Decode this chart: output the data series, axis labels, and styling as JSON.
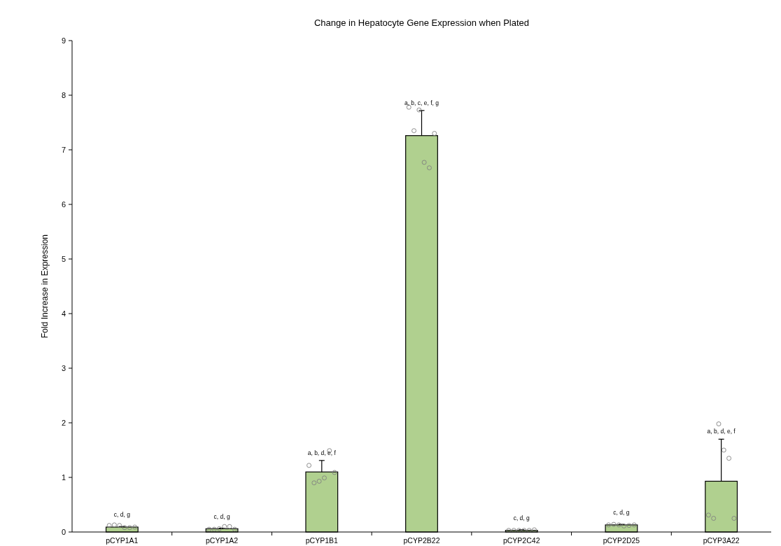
{
  "chart_data": {
    "type": "bar",
    "title": "Change in Hepatocyte Gene Expression when Plated",
    "ylabel": "Fold Increase in Expression",
    "categories": [
      "pCYP1A1",
      "pCYP1A2",
      "pCYP1B1",
      "pCYP2B22",
      "pCYP2C42",
      "pCYP2D25",
      "pCYP3A22"
    ],
    "series": [
      {
        "color": "#b0d08f",
        "values": [
          0.09,
          0.06,
          1.1,
          7.26,
          0.03,
          0.13,
          0.93
        ],
        "errors": [
          [
            0.09,
            0.1
          ],
          [
            0.06,
            0.07
          ],
          [
            1.1,
            1.31
          ],
          [
            7.26,
            7.72
          ],
          [
            0.03,
            0.04
          ],
          [
            0.13,
            0.14
          ],
          [
            0.93,
            1.7
          ]
        ]
      },
      {
        "type": "scatter",
        "color": "#808080",
        "marker": "circle",
        "x": [
          "pCYP1A1",
          "pCYP1A1",
          "pCYP1A1",
          "pCYP1A1",
          "pCYP1A1",
          "pCYP1A1",
          "pCYP1A2",
          "pCYP1A2",
          "pCYP1A2",
          "pCYP1A2",
          "pCYP1A2",
          "pCYP1A2",
          "pCYP1B1",
          "pCYP1B1",
          "pCYP1B1",
          "pCYP1B1",
          "pCYP1B1",
          "pCYP1B1",
          "pCYP2B22",
          "pCYP2B22",
          "pCYP2B22",
          "pCYP2B22",
          "pCYP2B22",
          "pCYP2B22",
          "pCYP2C42",
          "pCYP2C42",
          "pCYP2C42",
          "pCYP2C42",
          "pCYP2C42",
          "pCYP2C42",
          "pCYP2D25",
          "pCYP2D25",
          "pCYP2D25",
          "pCYP2D25",
          "pCYP2D25",
          "pCYP2D25",
          "pCYP3A22",
          "pCYP3A22",
          "pCYP3A22",
          "pCYP3A22",
          "pCYP3A22",
          "pCYP3A22"
        ],
        "values": [
          0.12,
          0.13,
          0.12,
          0.08,
          0.08,
          0.09,
          0.05,
          0.05,
          0.06,
          0.1,
          0.1,
          0.05,
          1.22,
          0.9,
          0.93,
          0.99,
          1.49,
          1.09,
          7.78,
          7.35,
          7.73,
          6.77,
          6.67,
          7.3,
          0.03,
          0.03,
          0.03,
          0.03,
          0.03,
          0.04,
          0.13,
          0.14,
          0.13,
          0.11,
          0.12,
          0.13,
          0.31,
          0.25,
          1.98,
          1.5,
          1.35,
          0.25
        ]
      }
    ],
    "ylim": [
      0,
      9
    ],
    "yticks": [
      0,
      1,
      2,
      3,
      4,
      5,
      6,
      7,
      8,
      9
    ],
    "grid": false,
    "annotations": [
      {
        "text": "c, d, g",
        "x": "pCYP1A1",
        "y": 0.1
      },
      {
        "text": "c, d, g",
        "x": "pCYP1A2",
        "y": 0.07
      },
      {
        "text": "a, b, d, e, f",
        "x": "pCYP1B1",
        "y": 1.31
      },
      {
        "text": "a, b, c, e, f, g",
        "x": "pCYP2B22",
        "y": 7.72
      },
      {
        "text": "c, d, g",
        "x": "pCYP2C42",
        "y": 0.04
      },
      {
        "text": "c, d, g",
        "x": "pCYP2D25",
        "y": 0.14
      },
      {
        "text": "a, b, d, e, f",
        "x": "pCYP3A22",
        "y": 1.7
      }
    ]
  }
}
